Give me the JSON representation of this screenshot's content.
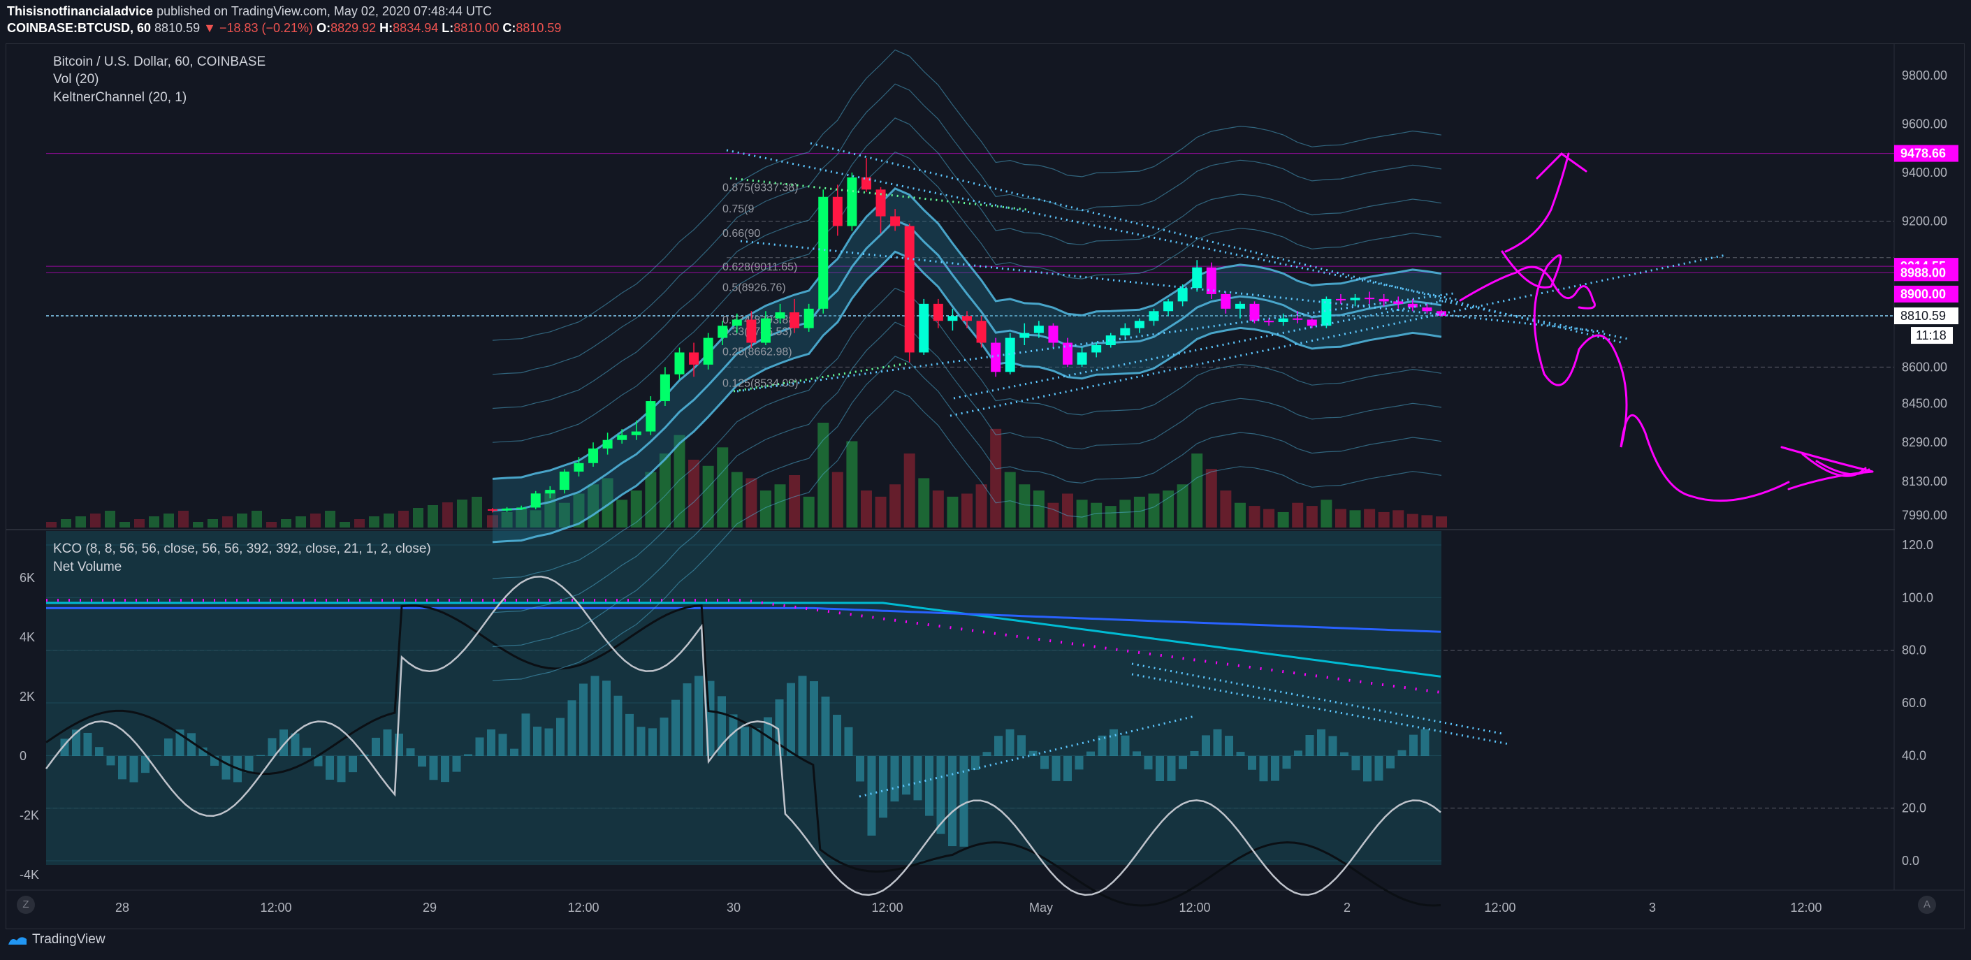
{
  "header": {
    "author": "Thisisnotfinancialadvice",
    "published": "published on TradingView.com, May 02, 2020 07:48:44 UTC",
    "symbol": "COINBASE:BTCUSD, 60",
    "last": "8810.59",
    "change": "▼ −18.83 (−0.21%)",
    "o_label": "O:",
    "o": "8829.92",
    "h_label": "H:",
    "h": "8834.94",
    "l_label": "L:",
    "l": "8810.00",
    "c_label": "C:",
    "c": "8810.59"
  },
  "legend_main": [
    "Bitcoin / U.S. Dollar, 60, COINBASE",
    "Vol (20)",
    "KeltnerChannel (20, 1)"
  ],
  "legend_sub": [
    "KCO (8, 8, 56, 56, close, 56, 56, 392, 392, close, 21, 1, 2, close)",
    "Net Volume"
  ],
  "footer": {
    "brand": "TradingView",
    "z_btn": "Z",
    "a_btn": "A"
  },
  "colors": {
    "bg": "#131722",
    "up": "#00e676",
    "down": "#ff1744",
    "magenta": "#ff00ff",
    "keltner": "#4fb3d9"
  },
  "chart_data": {
    "type": "candlestick",
    "price_axis_labels": [
      "9800.00",
      "9600.00",
      "9400.00",
      "9200.00",
      "8900.00",
      "8600.00",
      "8450.00",
      "8290.00",
      "8130.00",
      "7990.00"
    ],
    "price_markers": [
      {
        "label": "9478.66",
        "price": 9478.66
      },
      {
        "label": "9014.55",
        "price": 9014.55
      },
      {
        "label": "8988.00",
        "price": 8988.0
      },
      {
        "label": "8900.00",
        "price": 8900.0
      }
    ],
    "last_price": {
      "label": "8810.59",
      "value": 8810.59
    },
    "countdown": "11:18",
    "fib_levels": [
      {
        "label": "0.875(9337.38)",
        "value": 9337.38
      },
      {
        "label": "0.75(9",
        "value": 9250
      },
      {
        "label": "0.66(90",
        "value": 9150
      },
      {
        "label": "0.628(9011.65)",
        "value": 9011.65
      },
      {
        "label": "0.5(8926.76)",
        "value": 8926.76
      },
      {
        "label": "0.374(8793.88)",
        "value": 8793.88
      },
      {
        "label": "0.33(8746.53)",
        "value": 8746.53
      },
      {
        "label": "0.25(8662.98)",
        "value": 8662.98
      },
      {
        "label": "0.125(8534.03)",
        "value": 8534.03
      }
    ],
    "right_axis_sub": [
      "120.0",
      "100.0",
      "80.0",
      "60.0",
      "40.0",
      "20.0",
      "0.0"
    ],
    "left_axis_sub": [
      "6K",
      "4K",
      "2K",
      "0",
      "-2K",
      "-4K"
    ],
    "time_labels": [
      "28",
      "12:00",
      "29",
      "12:00",
      "30",
      "12:00",
      "May",
      "12:00",
      "2",
      "12:00",
      "3",
      "12:00"
    ],
    "candles": [
      [
        8015,
        8020,
        8002,
        8010
      ],
      [
        8010,
        8024,
        8004,
        8018
      ],
      [
        8018,
        8030,
        8012,
        8022
      ],
      [
        8022,
        8090,
        8015,
        8080
      ],
      [
        8080,
        8110,
        8060,
        8095
      ],
      [
        8095,
        8180,
        8080,
        8170
      ],
      [
        8170,
        8230,
        8150,
        8205
      ],
      [
        8205,
        8290,
        8190,
        8265
      ],
      [
        8265,
        8330,
        8240,
        8300
      ],
      [
        8300,
        8345,
        8285,
        8320
      ],
      [
        8320,
        8380,
        8300,
        8335
      ],
      [
        8335,
        8480,
        8320,
        8460
      ],
      [
        8460,
        8600,
        8440,
        8570
      ],
      [
        8570,
        8680,
        8550,
        8660
      ],
      [
        8660,
        8700,
        8560,
        8610
      ],
      [
        8610,
        8740,
        8590,
        8720
      ],
      [
        8720,
        8790,
        8690,
        8770
      ],
      [
        8770,
        8820,
        8740,
        8795
      ],
      [
        8795,
        8830,
        8680,
        8700
      ],
      [
        8700,
        8830,
        8690,
        8800
      ],
      [
        8800,
        8860,
        8780,
        8825
      ],
      [
        8825,
        8880,
        8740,
        8760
      ],
      [
        8760,
        8860,
        8745,
        8840
      ],
      [
        8840,
        9330,
        8820,
        9300
      ],
      [
        9300,
        9350,
        9140,
        9180
      ],
      [
        9180,
        9400,
        9160,
        9380
      ],
      [
        9380,
        9460,
        9320,
        9330
      ],
      [
        9330,
        9340,
        9150,
        9220
      ],
      [
        9220,
        9250,
        9160,
        9180
      ],
      [
        9180,
        9190,
        8620,
        8660
      ],
      [
        8660,
        8880,
        8650,
        8860
      ],
      [
        8860,
        8880,
        8760,
        8790
      ],
      [
        8790,
        8840,
        8750,
        8810
      ],
      [
        8810,
        8830,
        8760,
        8790
      ],
      [
        8790,
        8810,
        8680,
        8700
      ],
      [
        8700,
        8720,
        8560,
        8580
      ],
      [
        8580,
        8740,
        8570,
        8720
      ],
      [
        8720,
        8780,
        8690,
        8740
      ],
      [
        8740,
        8790,
        8720,
        8770
      ],
      [
        8770,
        8780,
        8680,
        8700
      ],
      [
        8700,
        8720,
        8600,
        8610
      ],
      [
        8610,
        8680,
        8600,
        8660
      ],
      [
        8660,
        8700,
        8640,
        8690
      ],
      [
        8690,
        8740,
        8680,
        8730
      ],
      [
        8730,
        8780,
        8710,
        8760
      ],
      [
        8760,
        8800,
        8740,
        8790
      ],
      [
        8790,
        8840,
        8770,
        8830
      ],
      [
        8830,
        8880,
        8810,
        8870
      ],
      [
        8870,
        8940,
        8850,
        8925
      ],
      [
        8925,
        9040,
        8910,
        9010
      ],
      [
        9010,
        9030,
        8880,
        8900
      ],
      [
        8900,
        8910,
        8820,
        8840
      ],
      [
        8840,
        8870,
        8800,
        8860
      ],
      [
        8860,
        8870,
        8780,
        8790
      ],
      [
        8790,
        8800,
        8770,
        8785
      ],
      [
        8785,
        8820,
        8770,
        8800
      ],
      [
        8800,
        8830,
        8780,
        8795
      ],
      [
        8795,
        8800,
        8760,
        8770
      ],
      [
        8770,
        8890,
        8760,
        8880
      ],
      [
        8880,
        8900,
        8860,
        8875
      ],
      [
        8875,
        8900,
        8850,
        8885
      ],
      [
        8885,
        8910,
        8860,
        8880
      ],
      [
        8880,
        8900,
        8850,
        8870
      ],
      [
        8870,
        8890,
        8840,
        8860
      ],
      [
        8860,
        8880,
        8830,
        8845
      ],
      [
        8845,
        8860,
        8820,
        8830
      ],
      [
        8829.92,
        8834.94,
        8810,
        8810.59
      ]
    ],
    "volume": [
      20,
      25,
      30,
      28,
      60,
      40,
      55,
      70,
      80,
      45,
      60,
      90,
      120,
      150,
      110,
      100,
      130,
      90,
      80,
      60,
      70,
      85,
      50,
      170,
      90,
      140,
      60,
      50,
      70,
      120,
      80,
      60,
      50,
      55,
      70,
      160,
      90,
      70,
      60,
      40,
      55,
      45,
      40,
      35,
      45,
      50,
      55,
      60,
      70,
      120,
      95,
      60,
      40,
      35,
      30,
      25,
      40,
      35,
      45,
      30,
      28,
      30,
      25,
      28,
      22,
      20,
      18
    ],
    "ymin": 7940,
    "ymax": 9920,
    "kco_range": [
      0,
      120
    ],
    "net_volume_range": [
      -4500,
      7000
    ]
  }
}
